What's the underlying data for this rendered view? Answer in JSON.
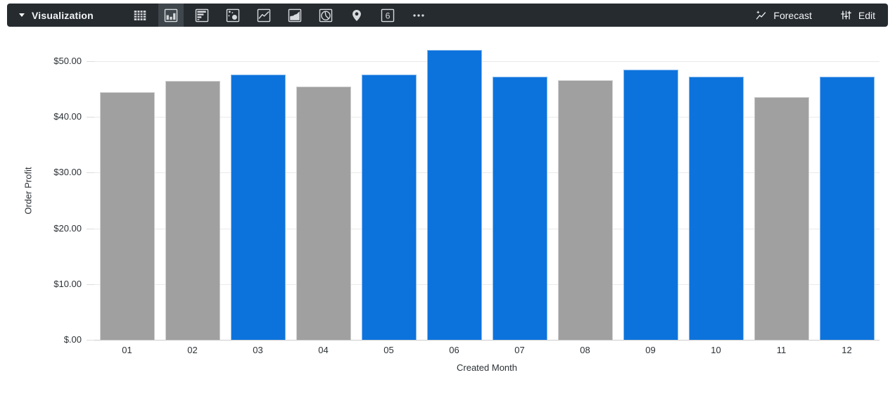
{
  "toolbar": {
    "title": "Visualization",
    "background": "#262b30",
    "selected_background": "#3f464c",
    "icon_color": "#d6dadd",
    "chart_types": [
      {
        "name": "table",
        "selected": false
      },
      {
        "name": "column",
        "selected": true
      },
      {
        "name": "bar",
        "selected": false
      },
      {
        "name": "scatter",
        "selected": false
      },
      {
        "name": "line",
        "selected": false
      },
      {
        "name": "area",
        "selected": false
      },
      {
        "name": "pie",
        "selected": false
      },
      {
        "name": "map",
        "selected": false
      },
      {
        "name": "single-value",
        "selected": false
      },
      {
        "name": "more",
        "selected": false
      }
    ],
    "single_value_glyph": "6",
    "forecast_label": "Forecast",
    "edit_label": "Edit"
  },
  "chart_data": {
    "type": "bar",
    "title": "",
    "xlabel": "Created Month",
    "ylabel": "Order Profit",
    "categories": [
      "01",
      "02",
      "03",
      "04",
      "05",
      "06",
      "07",
      "08",
      "09",
      "10",
      "11",
      "12"
    ],
    "values": [
      44.5,
      46.4,
      47.6,
      45.5,
      47.6,
      52,
      47.2,
      46.6,
      48.5,
      47.2,
      43.6,
      47.2
    ],
    "bar_colors": [
      "#a0a0a0",
      "#a0a0a0",
      "#0d73dc",
      "#a0a0a0",
      "#0d73dc",
      "#0d73dc",
      "#0d73dc",
      "#a0a0a0",
      "#0d73dc",
      "#0d73dc",
      "#a0a0a0",
      "#0d73dc"
    ],
    "colors": {
      "highlight_blue": "#0d73dc",
      "muted_gray": "#a0a0a0"
    },
    "y_ticks": [
      {
        "label": "$50.00",
        "value": 50
      },
      {
        "label": "$40.00",
        "value": 40
      },
      {
        "label": "$30.00",
        "value": 30
      },
      {
        "label": "$20.00",
        "value": 20
      },
      {
        "label": "$10.00",
        "value": 10
      },
      {
        "label": "$.00",
        "value": 0
      }
    ],
    "ylim": [
      0,
      53.4
    ],
    "grid": true,
    "legend": "none"
  }
}
